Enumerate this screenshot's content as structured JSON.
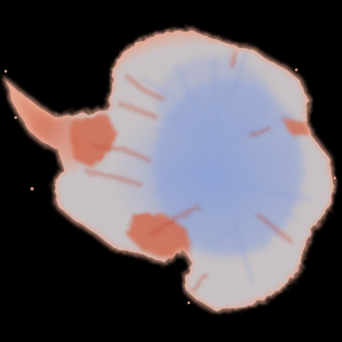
{
  "map": {
    "background_color": "#000000",
    "colors": {
      "interior_blue": "#8fa3d6",
      "mid_gray": "#c7c1c3",
      "coast_peach": "#e6a58f",
      "ice_shelf_red": "#cf6b4f",
      "deep_red": "#bd4a33"
    }
  }
}
